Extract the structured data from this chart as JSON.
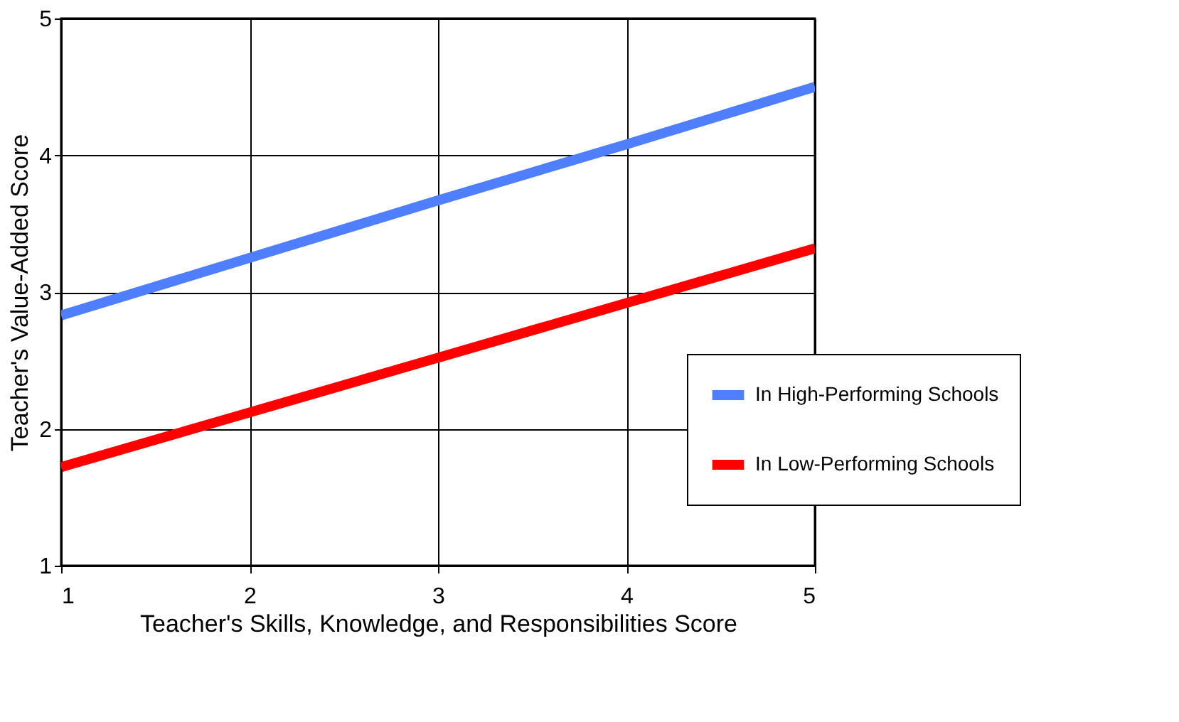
{
  "chart_data": {
    "type": "line",
    "xlabel": "Teacher's Skills, Knowledge, and Responsibilities Score",
    "ylabel": "Teacher's Value-Added Score",
    "x": [
      1,
      2,
      3,
      4,
      5
    ],
    "series": [
      {
        "name": "In High-Performing Schools",
        "color": "#4f7fff",
        "values": [
          2.83,
          3.25,
          3.67,
          4.08,
          4.5
        ]
      },
      {
        "name": "In Low-Performing Schools",
        "color": "#ff0000",
        "values": [
          1.72,
          2.12,
          2.52,
          2.92,
          3.32
        ]
      }
    ],
    "xlim": [
      1,
      5
    ],
    "xticks": [
      1,
      2,
      3,
      4,
      5
    ],
    "ylim": [
      1,
      5
    ],
    "yticks": [
      1,
      2,
      3,
      4,
      5
    ],
    "grid": true,
    "legend": "right",
    "marker": "none",
    "line_style": "solid"
  }
}
